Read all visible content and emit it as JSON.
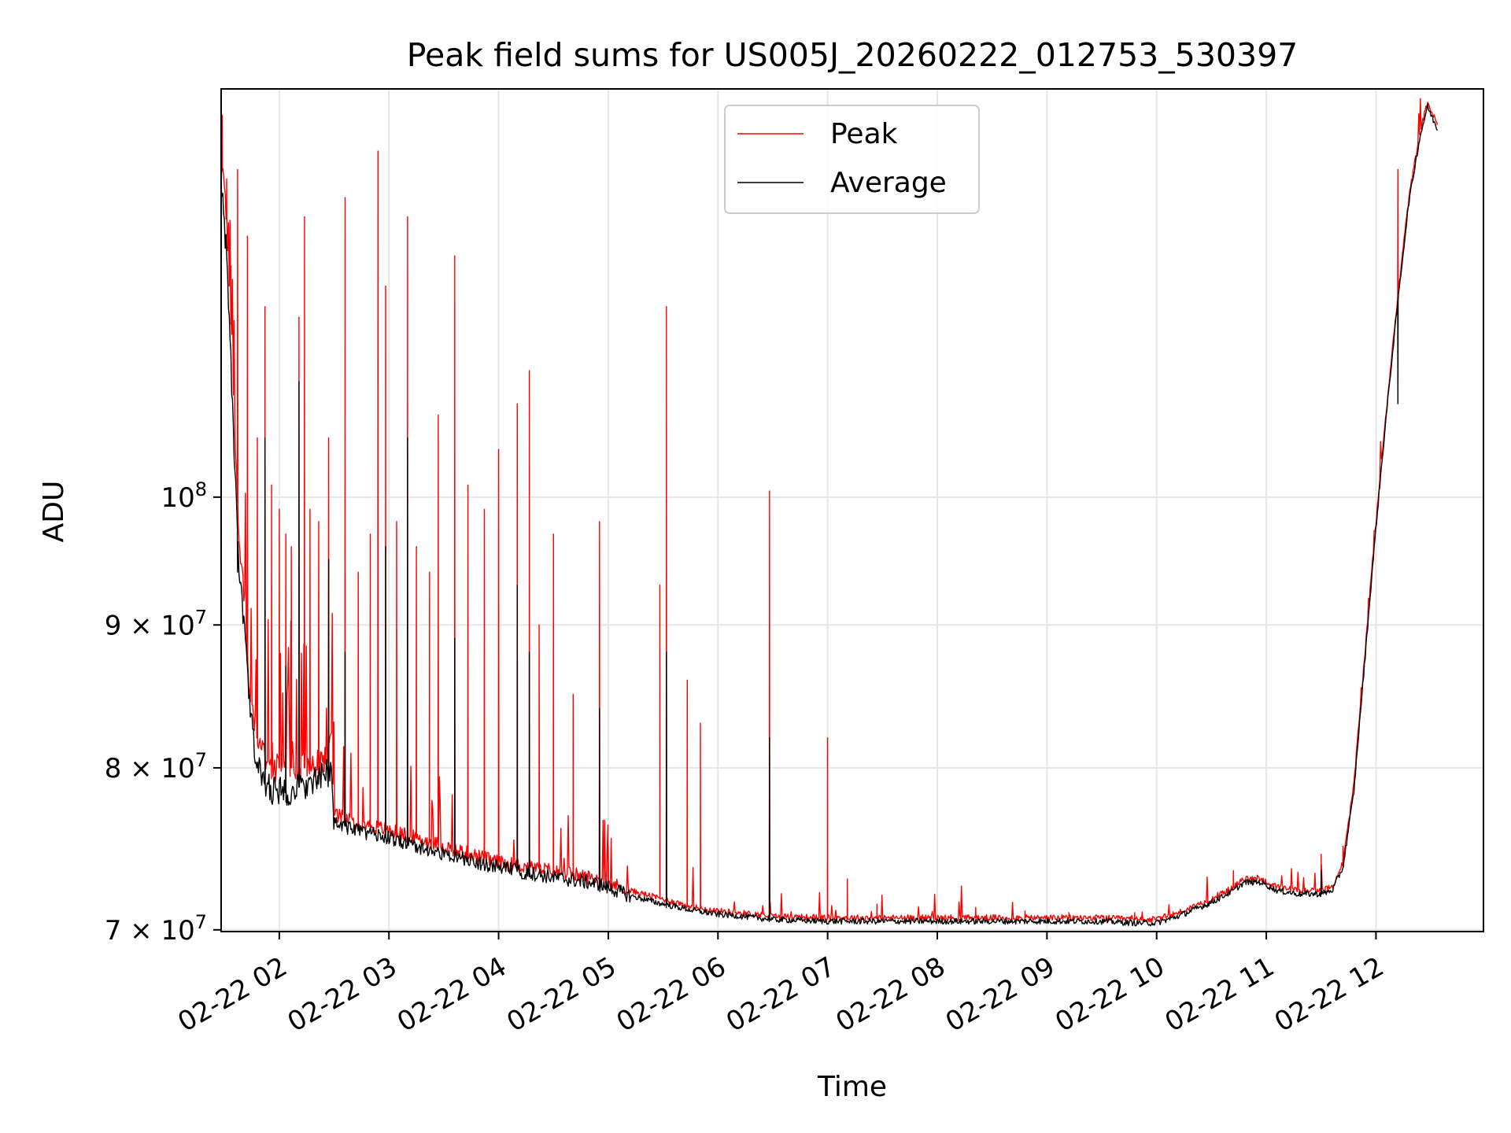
{
  "chart_data": {
    "type": "line",
    "title": "Peak field sums for US005J_20260222_012753_530397",
    "xlabel": "Time",
    "ylabel": "ADU",
    "yscale": "log",
    "xlim_hours": [
      1.47,
      12.98
    ],
    "ylim": [
      69900000,
      140000000
    ],
    "grid": true,
    "legend_position": "top-center",
    "x_ticks": [
      {
        "hour": 2,
        "label": "02-22 02"
      },
      {
        "hour": 3,
        "label": "02-22 03"
      },
      {
        "hour": 4,
        "label": "02-22 04"
      },
      {
        "hour": 5,
        "label": "02-22 05"
      },
      {
        "hour": 6,
        "label": "02-22 06"
      },
      {
        "hour": 7,
        "label": "02-22 07"
      },
      {
        "hour": 8,
        "label": "02-22 08"
      },
      {
        "hour": 9,
        "label": "02-22 09"
      },
      {
        "hour": 10,
        "label": "02-22 10"
      },
      {
        "hour": 11,
        "label": "02-22 11"
      },
      {
        "hour": 12,
        "label": "02-22 12"
      }
    ],
    "y_ticks": [
      {
        "value": 70000000,
        "mant": "7",
        "exp": "7"
      },
      {
        "value": 80000000,
        "mant": "8",
        "exp": "7"
      },
      {
        "value": 90000000,
        "mant": "9",
        "exp": "7"
      },
      {
        "value": 100000000,
        "mant": "",
        "exp": "8"
      }
    ],
    "series": [
      {
        "name": "Peak",
        "color": "#ff0000",
        "baseline": [
          [
            1.47,
            132000000
          ],
          [
            1.52,
            126000000
          ],
          [
            1.58,
            110000000
          ],
          [
            1.63,
            97000000
          ],
          [
            1.68,
            92000000
          ],
          [
            1.73,
            85000000
          ],
          [
            1.78,
            83000000
          ],
          [
            1.85,
            81000000
          ],
          [
            1.95,
            80000000
          ],
          [
            2.1,
            80000000
          ],
          [
            2.2,
            80000000
          ],
          [
            2.3,
            80000000
          ],
          [
            2.42,
            80500000
          ],
          [
            2.48,
            82000000
          ],
          [
            2.5,
            77000000
          ],
          [
            2.7,
            76500000
          ],
          [
            3.0,
            76000000
          ],
          [
            3.5,
            75000000
          ],
          [
            4.0,
            74000000
          ],
          [
            4.5,
            73500000
          ],
          [
            4.9,
            73000000
          ],
          [
            5.2,
            72300000
          ],
          [
            5.5,
            71800000
          ],
          [
            5.8,
            71300000
          ],
          [
            6.0,
            71100000
          ],
          [
            6.2,
            71000000
          ],
          [
            6.5,
            70800000
          ],
          [
            7.0,
            70700000
          ],
          [
            7.5,
            70700000
          ],
          [
            8.0,
            70700000
          ],
          [
            8.5,
            70700000
          ],
          [
            9.0,
            70700000
          ],
          [
            9.5,
            70700000
          ],
          [
            9.8,
            70600000
          ],
          [
            10.0,
            70600000
          ],
          [
            10.2,
            71000000
          ],
          [
            10.5,
            71800000
          ],
          [
            10.7,
            72500000
          ],
          [
            10.8,
            73000000
          ],
          [
            10.95,
            73000000
          ],
          [
            11.1,
            72500000
          ],
          [
            11.3,
            72300000
          ],
          [
            11.5,
            72300000
          ],
          [
            11.6,
            72500000
          ],
          [
            11.7,
            74000000
          ],
          [
            11.8,
            79000000
          ],
          [
            11.9,
            88000000
          ],
          [
            12.0,
            98000000
          ],
          [
            12.1,
            108000000
          ],
          [
            12.2,
            118000000
          ],
          [
            12.3,
            128000000
          ],
          [
            12.4,
            135000000
          ],
          [
            12.47,
            138500000
          ],
          [
            12.52,
            137000000
          ],
          [
            12.56,
            136000000
          ]
        ],
        "spikes": [
          [
            1.48,
            137000000
          ],
          [
            1.52,
            130000000
          ],
          [
            1.56,
            121000000
          ],
          [
            1.62,
            131000000
          ],
          [
            1.71,
            124000000
          ],
          [
            1.8,
            105000000
          ],
          [
            1.87,
            117000000
          ],
          [
            1.93,
            101000000
          ],
          [
            2.0,
            99000000
          ],
          [
            2.06,
            97000000
          ],
          [
            2.11,
            96000000
          ],
          [
            2.18,
            116000000
          ],
          [
            2.23,
            126000000
          ],
          [
            2.28,
            99000000
          ],
          [
            2.36,
            98000000
          ],
          [
            2.45,
            105000000
          ],
          [
            2.6,
            128000000
          ],
          [
            2.72,
            94000000
          ],
          [
            2.83,
            97000000
          ],
          [
            2.9,
            133000000
          ],
          [
            2.97,
            119000000
          ],
          [
            3.07,
            98000000
          ],
          [
            3.17,
            126000000
          ],
          [
            3.25,
            96000000
          ],
          [
            3.37,
            94000000
          ],
          [
            3.45,
            107000000
          ],
          [
            3.6,
            122000000
          ],
          [
            3.72,
            101000000
          ],
          [
            3.87,
            99000000
          ],
          [
            4.0,
            104000000
          ],
          [
            4.17,
            108000000
          ],
          [
            4.28,
            111000000
          ],
          [
            4.37,
            90000000
          ],
          [
            4.5,
            97000000
          ],
          [
            4.68,
            85000000
          ],
          [
            4.92,
            98000000
          ],
          [
            5.0,
            75000000
          ],
          [
            5.47,
            93000000
          ],
          [
            5.53,
            117000000
          ],
          [
            5.72,
            86000000
          ],
          [
            5.84,
            83000000
          ],
          [
            6.47,
            100500000
          ],
          [
            7.0,
            82000000
          ],
          [
            7.18,
            73000000
          ],
          [
            7.45,
            71500000
          ],
          [
            8.35,
            71300000
          ],
          [
            8.8,
            71100000
          ],
          [
            9.2,
            71000000
          ],
          [
            9.8,
            71000000
          ],
          [
            10.7,
            73500000
          ],
          [
            11.5,
            74500000
          ],
          [
            11.7,
            75000000
          ],
          [
            12.2,
            131000000
          ]
        ]
      },
      {
        "name": "Average",
        "color": "#000000",
        "baseline": [
          [
            1.47,
            130000000
          ],
          [
            1.52,
            122000000
          ],
          [
            1.58,
            106000000
          ],
          [
            1.63,
            94000000
          ],
          [
            1.68,
            90000000
          ],
          [
            1.73,
            84000000
          ],
          [
            1.78,
            81000000
          ],
          [
            1.85,
            79000000
          ],
          [
            1.95,
            78500000
          ],
          [
            2.1,
            78500000
          ],
          [
            2.2,
            78800000
          ],
          [
            2.3,
            79000000
          ],
          [
            2.42,
            79500000
          ],
          [
            2.48,
            80000000
          ],
          [
            2.5,
            76500000
          ],
          [
            2.7,
            76000000
          ],
          [
            3.0,
            75500000
          ],
          [
            3.5,
            74500000
          ],
          [
            4.0,
            73700000
          ],
          [
            4.5,
            73100000
          ],
          [
            4.9,
            72700000
          ],
          [
            5.2,
            72000000
          ],
          [
            5.5,
            71500000
          ],
          [
            5.8,
            71100000
          ],
          [
            6.0,
            70900000
          ],
          [
            6.2,
            70800000
          ],
          [
            6.5,
            70600000
          ],
          [
            7.0,
            70500000
          ],
          [
            7.5,
            70500000
          ],
          [
            8.0,
            70500000
          ],
          [
            8.5,
            70500000
          ],
          [
            9.0,
            70500000
          ],
          [
            9.5,
            70500000
          ],
          [
            9.8,
            70400000
          ],
          [
            10.0,
            70400000
          ],
          [
            10.2,
            70800000
          ],
          [
            10.5,
            71600000
          ],
          [
            10.7,
            72300000
          ],
          [
            10.8,
            72800000
          ],
          [
            10.95,
            72800000
          ],
          [
            11.1,
            72300000
          ],
          [
            11.3,
            72100000
          ],
          [
            11.5,
            72100000
          ],
          [
            11.6,
            72300000
          ],
          [
            11.7,
            73700000
          ],
          [
            11.8,
            78500000
          ],
          [
            11.9,
            87500000
          ],
          [
            12.0,
            97500000
          ],
          [
            12.1,
            107500000
          ],
          [
            12.2,
            117500000
          ],
          [
            12.3,
            127500000
          ],
          [
            12.4,
            134500000
          ],
          [
            12.47,
            138000000
          ],
          [
            12.52,
            136500000
          ],
          [
            12.56,
            135500000
          ]
        ],
        "spikes": [
          [
            1.62,
            94000000
          ],
          [
            1.87,
            105000000
          ],
          [
            2.06,
            87000000
          ],
          [
            2.18,
            110000000
          ],
          [
            2.45,
            95000000
          ],
          [
            2.6,
            88000000
          ],
          [
            2.97,
            96000000
          ],
          [
            3.17,
            105000000
          ],
          [
            3.6,
            89000000
          ],
          [
            4.17,
            93000000
          ],
          [
            4.28,
            88000000
          ],
          [
            4.92,
            84000000
          ],
          [
            5.53,
            88000000
          ],
          [
            6.47,
            82000000
          ],
          [
            11.5,
            73500000
          ],
          [
            12.2,
            108000000
          ]
        ]
      }
    ]
  }
}
